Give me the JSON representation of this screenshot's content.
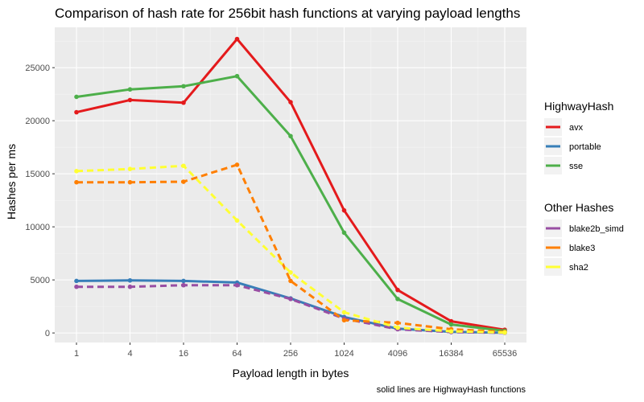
{
  "chart_data": {
    "type": "line",
    "title": "Comparison of hash rate for 256bit hash functions at varying payload lengths",
    "xlabel": "Payload length in bytes",
    "ylabel": "Hashes per ms",
    "caption": "solid lines are HighwayHash functions",
    "categories": [
      "1",
      "4",
      "16",
      "64",
      "256",
      "1024",
      "4096",
      "16384",
      "65536"
    ],
    "ylim": [
      -900,
      28800
    ],
    "yticks": [
      0,
      5000,
      10000,
      15000,
      20000,
      25000
    ],
    "ytick_labels": [
      "0",
      "5000",
      "10000",
      "15000",
      "20000",
      "25000"
    ],
    "grid": true,
    "legend_position": "right",
    "legend_groups": [
      {
        "title": "HighwayHash",
        "entries": [
          "avx",
          "portable",
          "sse"
        ]
      },
      {
        "title": "Other Hashes",
        "entries": [
          "blake2b_simd",
          "blake3",
          "sha2"
        ]
      }
    ],
    "series": [
      {
        "name": "avx",
        "group": "HighwayHash",
        "color": "#e41a1c",
        "dashed": false,
        "values": [
          20800,
          21950,
          21700,
          27700,
          21750,
          11550,
          4050,
          1100,
          300
        ]
      },
      {
        "name": "portable",
        "group": "HighwayHash",
        "color": "#377eb8",
        "dashed": false,
        "values": [
          4900,
          4950,
          4900,
          4750,
          3250,
          1500,
          400,
          100,
          20
        ]
      },
      {
        "name": "sse",
        "group": "HighwayHash",
        "color": "#4daf4a",
        "dashed": false,
        "values": [
          22250,
          22950,
          23250,
          24200,
          18550,
          9450,
          3200,
          800,
          200
        ]
      },
      {
        "name": "blake2b_simd",
        "group": "Other Hashes",
        "color": "#984ea3",
        "dashed": true,
        "values": [
          4350,
          4350,
          4500,
          4500,
          3200,
          1350,
          350,
          80,
          20
        ]
      },
      {
        "name": "blake3",
        "group": "Other Hashes",
        "color": "#ff7f00",
        "dashed": true,
        "values": [
          14200,
          14200,
          14250,
          15850,
          4900,
          1200,
          950,
          350,
          100
        ]
      },
      {
        "name": "sha2",
        "group": "Other Hashes",
        "color": "#ffff33",
        "dashed": true,
        "values": [
          15250,
          15450,
          15750,
          10600,
          5700,
          1950,
          500,
          150,
          40
        ]
      }
    ]
  }
}
